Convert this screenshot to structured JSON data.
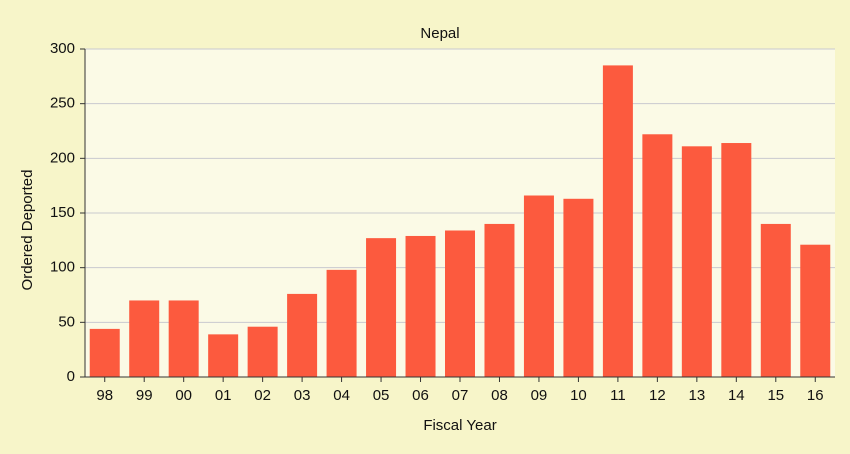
{
  "chart_data": {
    "type": "bar",
    "title": "Nepal",
    "x_label": "Fiscal Year",
    "y_label": "Ordered Deported",
    "categories": [
      "98",
      "99",
      "00",
      "01",
      "02",
      "03",
      "04",
      "05",
      "06",
      "07",
      "08",
      "09",
      "10",
      "11",
      "12",
      "13",
      "14",
      "15",
      "16"
    ],
    "values": [
      44,
      70,
      70,
      39,
      46,
      76,
      98,
      127,
      129,
      134,
      140,
      166,
      163,
      285,
      222,
      211,
      214,
      140,
      121
    ],
    "color": "#fc5a3e",
    "ylim": [
      0,
      300
    ],
    "yticks": [
      0,
      50,
      100,
      150,
      200,
      250,
      300
    ],
    "grid": true
  }
}
